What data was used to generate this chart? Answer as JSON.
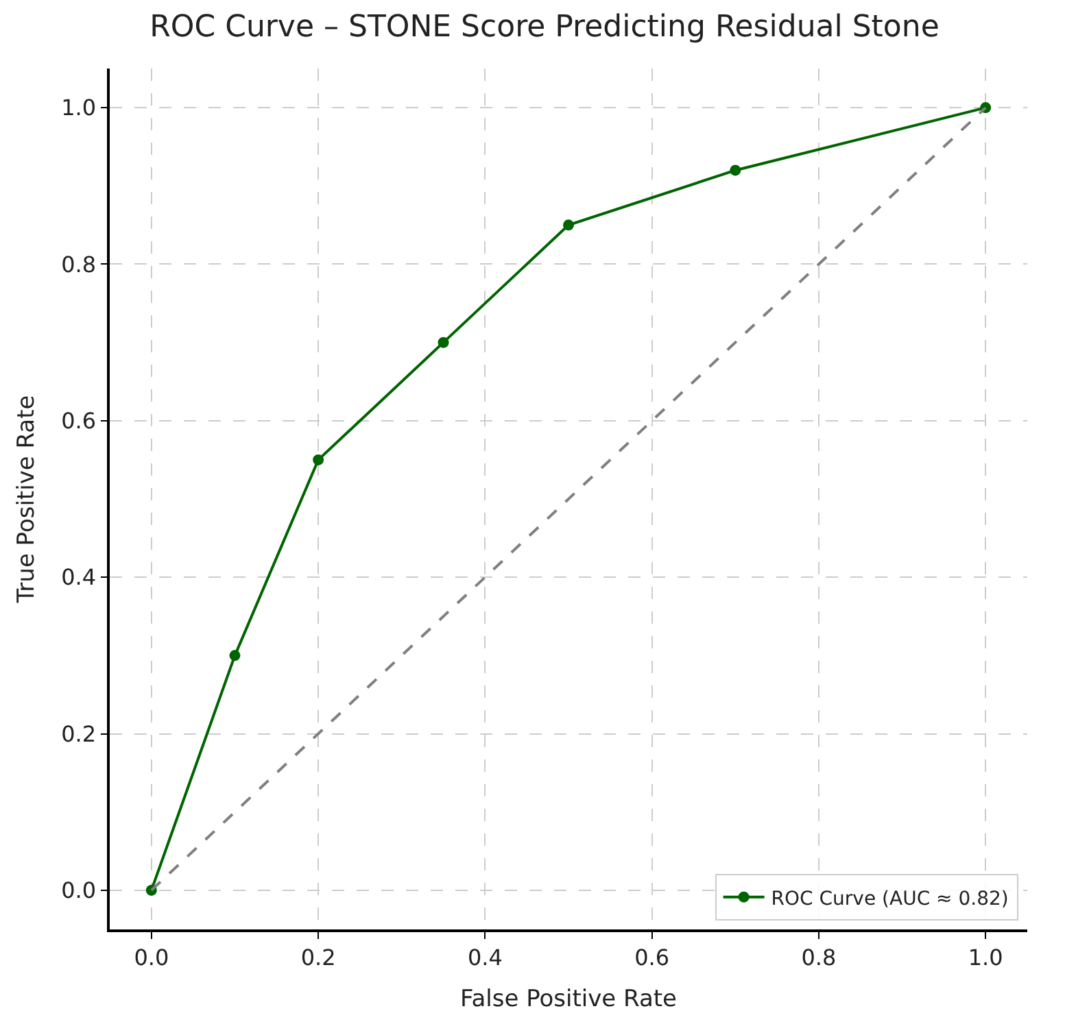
{
  "chart_data": {
    "type": "line",
    "title": "ROC Curve – STONE Score Predicting Residual Stone",
    "xlabel": "False Positive Rate",
    "ylabel": "True Positive Rate",
    "series": [
      {
        "name": "ROC Curve (AUC ≈ 0.82)",
        "color": "#006400",
        "x": [
          0,
          0.1,
          0.2,
          0.35,
          0.5,
          0.7,
          1.0
        ],
        "values": [
          0,
          0.3,
          0.55,
          0.7,
          0.85,
          0.92,
          1.0
        ],
        "marker": "circle",
        "line_style": "solid"
      },
      {
        "color": "#808080",
        "x": [
          0,
          1
        ],
        "values": [
          0,
          1
        ],
        "marker": "none",
        "line_style": "dashed"
      }
    ],
    "xlim": [
      -0.05,
      1.05
    ],
    "ylim": [
      -0.05,
      1.05
    ],
    "xticks": [
      {
        "value": 0,
        "label": "0.0"
      },
      {
        "value": 0.2,
        "label": "0.2"
      },
      {
        "value": 0.4,
        "label": "0.4"
      },
      {
        "value": 0.6,
        "label": "0.6"
      },
      {
        "value": 0.8,
        "label": "0.8"
      },
      {
        "value": 1.0,
        "label": "1.0"
      }
    ],
    "yticks": [
      {
        "value": 0,
        "label": "0.0"
      },
      {
        "value": 0.2,
        "label": "0.2"
      },
      {
        "value": 0.4,
        "label": "0.4"
      },
      {
        "value": 0.6,
        "label": "0.6"
      },
      {
        "value": 0.8,
        "label": "0.8"
      },
      {
        "value": 1.0,
        "label": "1.0"
      }
    ],
    "grid": true,
    "legend": "bottom right"
  }
}
